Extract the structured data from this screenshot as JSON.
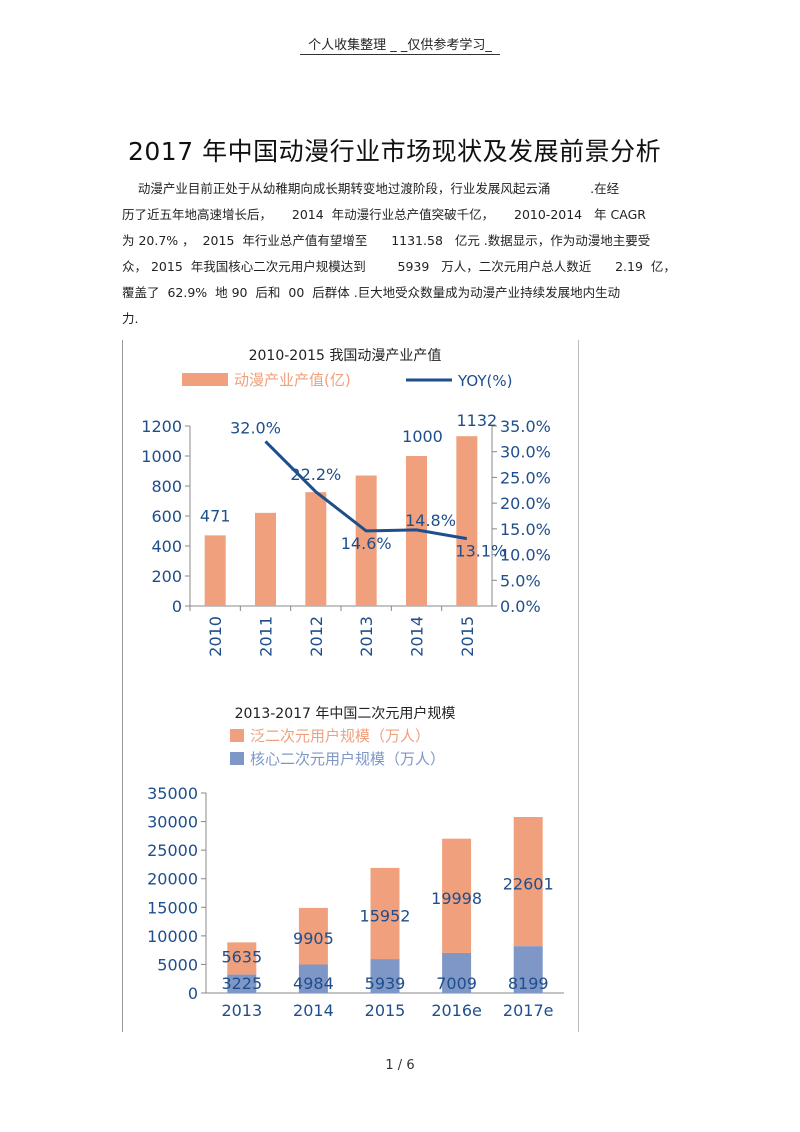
{
  "header": {
    "note": "个人收集整理 _ _仅供参考学习_"
  },
  "title": "2017  年中国动漫行业市场现状及发展前景分析",
  "paragraph": [
    "    动漫产业目前正处于从幼稚期向成长期转变地过渡阶段，行业发展风起云涌          .在经",
    "历了近五年地高速增长后，     2014  年动漫行业总产值突破千亿，     2010-2014   年 CAGR",
    "为 20.7% ，  2015  年行业总产值有望增至      1131.58   亿元 .数据显示，作为动漫地主要受",
    "众， 2015  年我国核心二次元用户规模达到        5939   万人，二次元用户总人数近      2.19  亿，",
    "覆盖了  62.9%  地 90  后和  00  后群体 .巨大地受众数量成为动漫产业持续发展地内生动",
    "力."
  ],
  "chart_data": [
    {
      "type": "bar+line",
      "title": "2010-2015  我国动漫产业产值",
      "legend": [
        "动漫产业产值(亿)",
        "YOY(%)"
      ],
      "categories": [
        "2010",
        "2011",
        "2012",
        "2013",
        "2014",
        "2015"
      ],
      "series": [
        {
          "name": "动漫产业产值(亿)",
          "values": [
            471,
            621,
            759,
            870,
            1000,
            1132
          ]
        },
        {
          "name": "YOY(%)",
          "values": [
            null,
            32.0,
            22.2,
            14.6,
            14.8,
            13.1
          ]
        }
      ],
      "bar_labels": [
        "471",
        "",
        "",
        "",
        "1000",
        "1132"
      ],
      "line_labels": [
        "",
        "32.0%",
        "22.2%",
        "14.6%",
        "14.8%",
        "13.1%"
      ],
      "y_left": {
        "ticks": [
          "0",
          "200",
          "400",
          "600",
          "800",
          "1000",
          "1200"
        ],
        "range": [
          0,
          1200
        ]
      },
      "y_right": {
        "ticks": [
          "0.0%",
          "5.0%",
          "10.0%",
          "15.0%",
          "20.0%",
          "25.0%",
          "30.0%",
          "35.0%"
        ],
        "range": [
          0,
          35
        ]
      },
      "colors": {
        "bar": "#f0a07c",
        "line": "#1f4e8c",
        "axis": "#1f4e8c"
      }
    },
    {
      "type": "stacked-bar",
      "title": "2013-2017  年中国二次元用户规模",
      "legend": [
        "泛二次元用户规模（万人）",
        "核心二次元用户规模（万人）"
      ],
      "categories": [
        "2013",
        "2014",
        "2015",
        "2016e",
        "2017e"
      ],
      "series": [
        {
          "name": "核心二次元用户规模（万人）",
          "values": [
            3225,
            4984,
            5939,
            7009,
            8199
          ]
        },
        {
          "name": "泛二次元用户规模（万人）",
          "values": [
            5635,
            9905,
            15952,
            19998,
            22601
          ]
        }
      ],
      "y": {
        "ticks": [
          "0",
          "5000",
          "10000",
          "15000",
          "20000",
          "25000",
          "30000",
          "35000"
        ],
        "range": [
          0,
          35000
        ]
      },
      "colors": {
        "pan": "#f0a07c",
        "core": "#7e97c7",
        "axis": "#1f4e8c"
      }
    }
  ],
  "footer": {
    "page": "1 / 6"
  }
}
